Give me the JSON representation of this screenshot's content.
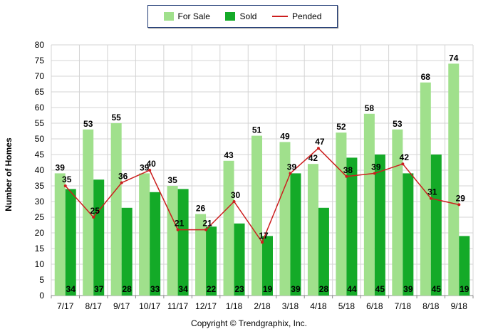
{
  "chart_data": {
    "type": "bar",
    "categories": [
      "7/17",
      "8/17",
      "9/17",
      "10/17",
      "11/17",
      "12/17",
      "1/18",
      "2/18",
      "3/18",
      "4/18",
      "5/18",
      "6/18",
      "7/18",
      "8/18",
      "9/18"
    ],
    "series": [
      {
        "name": "For Sale",
        "kind": "bar",
        "color": "#a0e08c",
        "values": [
          39,
          53,
          55,
          39,
          35,
          26,
          43,
          51,
          49,
          42,
          52,
          58,
          53,
          68,
          74
        ]
      },
      {
        "name": "Sold",
        "kind": "bar",
        "color": "#14aa28",
        "values": [
          34,
          37,
          28,
          33,
          34,
          22,
          23,
          19,
          39,
          28,
          44,
          45,
          39,
          45,
          19
        ]
      },
      {
        "name": "Pended",
        "kind": "line",
        "color": "#cc1e1e",
        "values": [
          35,
          25,
          36,
          40,
          21,
          21,
          30,
          17,
          39,
          47,
          38,
          39,
          42,
          31,
          29
        ]
      }
    ],
    "ylabel": "Number of Homes",
    "xlabel": "",
    "ylim": [
      0,
      80
    ],
    "yticks": [
      0,
      5,
      10,
      15,
      20,
      25,
      30,
      35,
      40,
      45,
      50,
      55,
      60,
      65,
      70,
      75,
      80
    ],
    "grid": true,
    "legend_position": "top-center"
  },
  "copyright": "Copyright © Trendgraphix, Inc."
}
